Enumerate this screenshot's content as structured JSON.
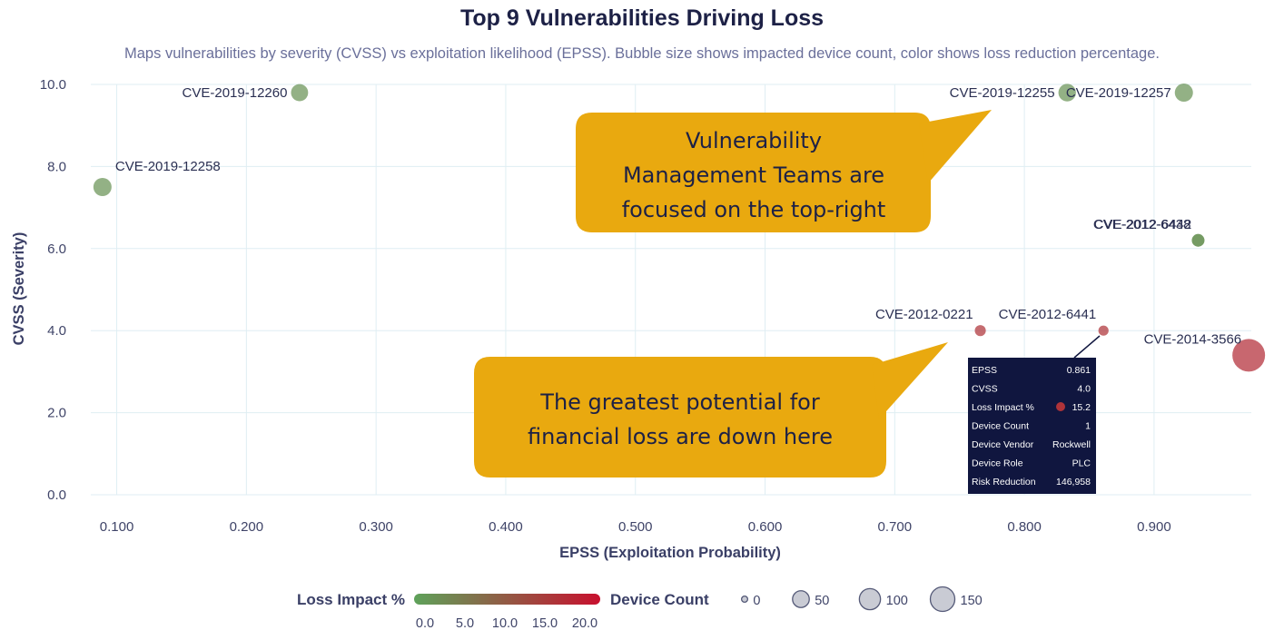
{
  "colors": {
    "grid": "#dfeef3",
    "low": "#5ea25a",
    "high": "#c8102e",
    "callout": "#e9a90f",
    "tooltip_bg": "#10163f",
    "device_bubble": "#c9cbd4"
  },
  "chart_data": {
    "type": "scatter",
    "title": "Top 9 Vulnerabilities Driving Loss",
    "subtitle": "Maps vulnerabilities by severity (CVSS) vs exploitation likelihood (EPSS). Bubble size shows impacted device count, color shows loss reduction percentage.",
    "xlabel": "EPSS (Exploitation Probability)",
    "ylabel": "CVSS (Severity)",
    "xlim": [
      0.08,
      0.975
    ],
    "ylim": [
      0,
      10
    ],
    "xticks": [
      0.1,
      0.2,
      0.3,
      0.4,
      0.5,
      0.6,
      0.7,
      0.8,
      0.9
    ],
    "xtick_labels": [
      "0.100",
      "0.200",
      "0.300",
      "0.400",
      "0.500",
      "0.600",
      "0.700",
      "0.800",
      "0.900"
    ],
    "yticks": [
      0,
      2,
      4,
      6,
      8,
      10
    ],
    "ytick_labels": [
      "0.0",
      "2.0",
      "4.0",
      "6.0",
      "8.0",
      "10.0"
    ],
    "grid": true,
    "points": [
      {
        "label": "CVE-2019-12260",
        "x": 0.241,
        "y": 9.8,
        "devices": 20,
        "loss_pct": 2.0,
        "label_side": "left"
      },
      {
        "label": "CVE-2019-12258",
        "x": 0.089,
        "y": 7.5,
        "devices": 25,
        "loss_pct": 2.0,
        "label_side": "right-up"
      },
      {
        "label": "CVE-2019-12255",
        "x": 0.833,
        "y": 9.8,
        "devices": 22,
        "loss_pct": 2.0,
        "label_side": "left"
      },
      {
        "label": "CVE-2019-12257",
        "x": 0.923,
        "y": 9.8,
        "devices": 25,
        "loss_pct": 2.0,
        "label_side": "left"
      },
      {
        "label": "CVE-2012-6438",
        "x": 0.934,
        "y": 6.2,
        "devices": 5,
        "loss_pct": 2.0,
        "label_side": "left-up"
      },
      {
        "label": "CVE-2012-6442",
        "x": 0.934,
        "y": 6.2,
        "devices": 5,
        "loss_pct": 2.0,
        "label_side": "left-up"
      },
      {
        "label": "CVE-2012-0221",
        "x": 0.766,
        "y": 4.0,
        "devices": 2,
        "loss_pct": 15.2,
        "label_side": "left-up"
      },
      {
        "label": "CVE-2012-6441",
        "x": 0.861,
        "y": 4.0,
        "devices": 1,
        "loss_pct": 15.2,
        "label_side": "left-up"
      },
      {
        "label": "CVE-2014-3566",
        "x": 0.973,
        "y": 3.4,
        "devices": 150,
        "loss_pct": 16.0,
        "label_side": "left-up"
      }
    ],
    "color_legend": {
      "title": "Loss Impact %",
      "ticks": [
        "0.0",
        "5.0",
        "10.0",
        "15.0",
        "20.0"
      ],
      "min": 0,
      "max": 20
    },
    "size_legend": {
      "title": "Device Count",
      "values": [
        0,
        50,
        100,
        150
      ],
      "labels": [
        "0",
        "50",
        "100",
        "150"
      ]
    }
  },
  "callouts": {
    "top": [
      "Vulnerability",
      "Management Teams are",
      "focused on the top-right"
    ],
    "bottom": [
      "The greatest potential for",
      "financial loss are down here"
    ]
  },
  "tooltip": {
    "rows": [
      {
        "key": "EPSS",
        "value": "0.861"
      },
      {
        "key": "CVSS",
        "value": "4.0"
      },
      {
        "key": "Loss Impact %",
        "value": "15.2"
      },
      {
        "key": "Device Count",
        "value": "1"
      },
      {
        "key": "Device Vendor",
        "value": "Rockwell"
      },
      {
        "key": "Device Role",
        "value": "PLC"
      },
      {
        "key": "Risk Reduction",
        "value": "146,958"
      }
    ]
  }
}
